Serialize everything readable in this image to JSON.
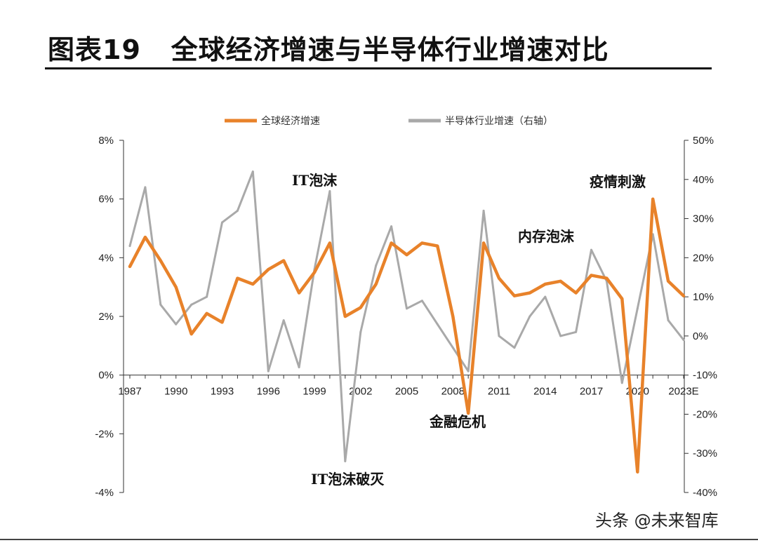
{
  "header": {
    "title": "图表19   全球经济增速与半导体行业增速对比"
  },
  "watermark": "头条 @未来智库",
  "chart_data": {
    "type": "line",
    "x": [
      1987,
      1988,
      1989,
      1990,
      1991,
      1992,
      1993,
      1994,
      1995,
      1996,
      1997,
      1998,
      1999,
      2000,
      2001,
      2002,
      2003,
      2004,
      2005,
      2006,
      2007,
      2008,
      2009,
      2010,
      2011,
      2012,
      2013,
      2014,
      2015,
      2016,
      2017,
      2018,
      2019,
      2020,
      2021,
      2022,
      2023
    ],
    "x_tick_labels": [
      "1987",
      "1990",
      "1993",
      "1996",
      "1999",
      "2002",
      "2005",
      "2008",
      "2011",
      "2014",
      "2017",
      "2020",
      "2023E"
    ],
    "series": [
      {
        "name": "全球经济增速",
        "axis": "left",
        "color": "#E8822A",
        "values": [
          3.7,
          4.7,
          3.9,
          3.0,
          1.4,
          2.1,
          1.8,
          3.3,
          3.1,
          3.6,
          3.9,
          2.8,
          3.5,
          4.5,
          2.0,
          2.3,
          3.1,
          4.5,
          4.1,
          4.5,
          4.4,
          2.0,
          -1.3,
          4.5,
          3.3,
          2.7,
          2.8,
          3.1,
          3.2,
          2.8,
          3.4,
          3.3,
          2.6,
          -3.3,
          6.0,
          3.2,
          2.7
        ]
      },
      {
        "name": "半导体行业增速（右轴）",
        "axis": "right",
        "color": "#A9A9A9",
        "values": [
          23,
          38,
          8,
          3,
          8,
          10,
          29,
          32,
          42,
          -9,
          4,
          -8,
          17,
          37,
          -32,
          1,
          18,
          28,
          7,
          9,
          3,
          -3,
          -9,
          32,
          0,
          -3,
          5,
          10,
          0,
          1,
          22,
          14,
          -12,
          7,
          26,
          4,
          -1
        ]
      }
    ],
    "left_axis": {
      "ylim": [
        -4,
        8
      ],
      "ticks": [
        "-4%",
        "-2%",
        "0%",
        "2%",
        "4%",
        "6%",
        "8%"
      ]
    },
    "right_axis": {
      "ylim": [
        -40,
        50
      ],
      "ticks": [
        "-40%",
        "-30%",
        "-20%",
        "-10%",
        "0%",
        "10%",
        "20%",
        "30%",
        "40%",
        "50%"
      ]
    },
    "legend": {
      "placement": "top-center"
    },
    "annotations": [
      "IT泡沫",
      "IT泡沫破灭",
      "金融危机",
      "内存泡沫",
      "疫情刺激"
    ]
  }
}
